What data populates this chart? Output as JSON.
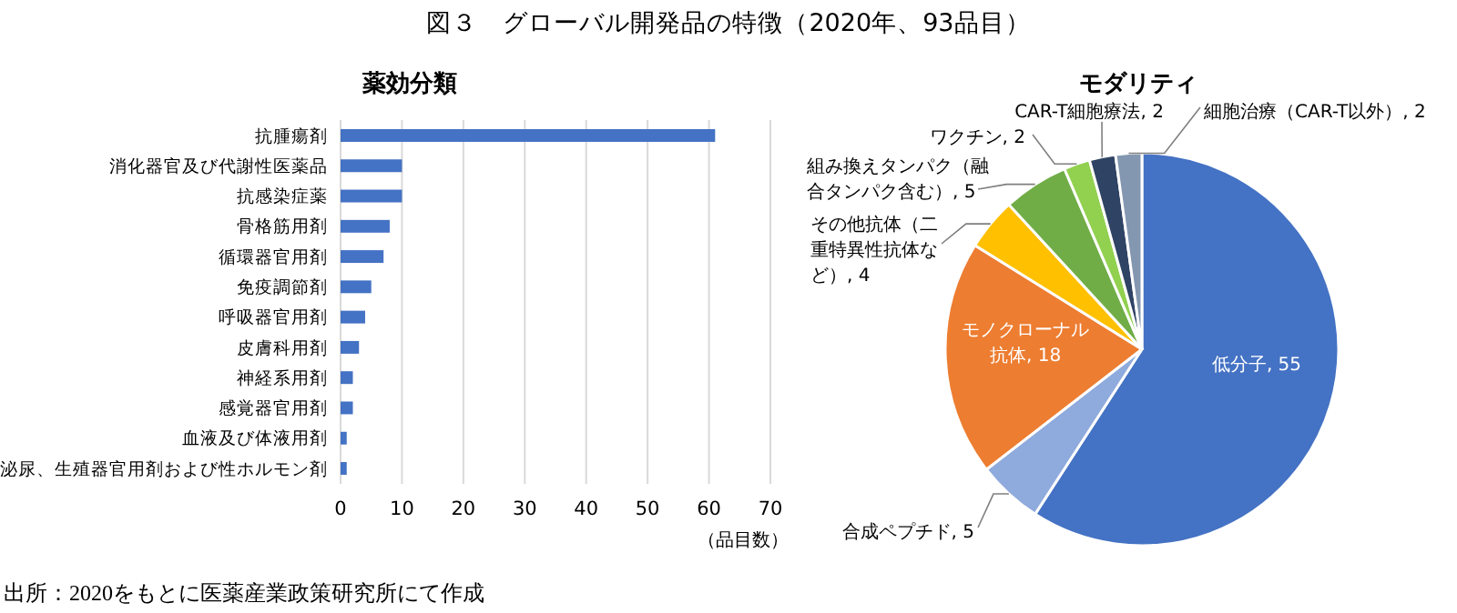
{
  "chart_data": [
    {
      "type": "bar",
      "title": "図３　グローバル開発品の特徴（2020年、93品目）",
      "subtitle": "薬効分類",
      "orientation": "horizontal",
      "categories": [
        "抗腫瘍剤",
        "消化器官及び代謝性医薬品",
        "抗感染症薬",
        "骨格筋用剤",
        "循環器官用剤",
        "免疫調節剤",
        "呼吸器官用剤",
        "皮膚科用剤",
        "神経系用剤",
        "感覚器官用剤",
        "血液及び体液用剤",
        "泌尿、生殖器官用剤および性ホルモン剤"
      ],
      "values": [
        61,
        10,
        10,
        8,
        7,
        5,
        4,
        3,
        2,
        2,
        1,
        1
      ],
      "color": "#4472c4",
      "xlim": [
        0,
        70
      ],
      "xticks": [
        0,
        10,
        20,
        30,
        40,
        50,
        60,
        70
      ],
      "xlabel": "（品目数）",
      "grid": "x",
      "annotations": [
        "出所：2020をもとに医薬産業政策研究所にて作成"
      ]
    },
    {
      "type": "pie",
      "title": "モダリティ",
      "categories": [
        "低分子",
        "合成ペプチド",
        "モノクローナル抗体",
        "その他抗体（二重特異性抗体など）",
        "組み換えタンパク（融合タンパク含む）",
        "ワクチン",
        "CAR-T細胞療法",
        "細胞治療（CAR-T以外）"
      ],
      "values": [
        55,
        5,
        18,
        4,
        5,
        2,
        2,
        2
      ],
      "colors": [
        "#4472c4",
        "#8faadc",
        "#ed7d31",
        "#ffc000",
        "#70ad47",
        "#92d050",
        "#2f4364",
        "#8497b0"
      ],
      "value_labels": [
        ", 55",
        ", 5",
        ", 18",
        ", 4",
        ", 5",
        ", 2",
        ", 2",
        ", 2"
      ]
    }
  ]
}
